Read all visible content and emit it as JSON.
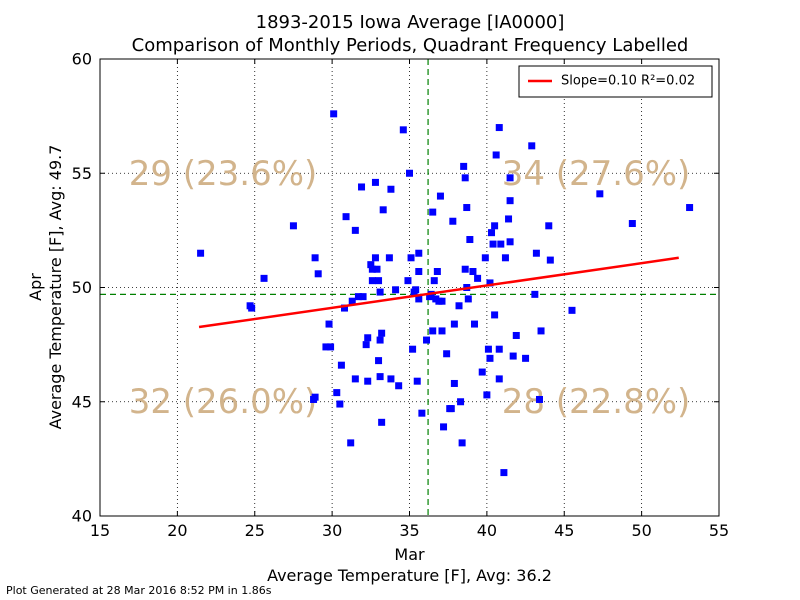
{
  "title": "1893-2015 Iowa Average [IA0000]",
  "subtitle": "Comparison of Monthly Periods, Quadrant Frequency Labelled",
  "footer": "Plot Generated at 28 Mar 2016 8:52 PM in 1.86s",
  "chart_data": {
    "type": "scatter",
    "xlabel": "Mar",
    "xlabel2": "Average Temperature [F], Avg: 36.2",
    "ylabel": "Apr",
    "ylabel2": "Average Temperature [F], Avg: 49.7",
    "xlim": [
      15,
      55
    ],
    "ylim": [
      40,
      60
    ],
    "xticks": [
      15,
      20,
      25,
      30,
      35,
      40,
      45,
      50,
      55
    ],
    "yticks": [
      40,
      45,
      50,
      55,
      60
    ],
    "grid": true,
    "x_avg": 36.2,
    "y_avg": 49.7,
    "legend": {
      "label": "Slope=0.10 R²=0.02",
      "placement": "top-right"
    },
    "regression_line": {
      "x": [
        21.4,
        52.4
      ],
      "y": [
        48.27,
        51.3
      ],
      "color": "#ff0000"
    },
    "point_color": "#0000ff",
    "avg_line_color": "#008000",
    "quadrant_label_color": "#d2b48c",
    "quadrant_labels": {
      "top_left": "29 (23.6%)",
      "top_right": "34 (27.6%)",
      "bottom_left": "32 (26.0%)",
      "bottom_right": "28 (22.8%)"
    },
    "points": [
      [
        21.5,
        51.5
      ],
      [
        24.7,
        49.2
      ],
      [
        24.8,
        49.1
      ],
      [
        25.6,
        50.4
      ],
      [
        27.5,
        52.7
      ],
      [
        28.8,
        45.1
      ],
      [
        28.9,
        45.2
      ],
      [
        28.9,
        51.3
      ],
      [
        29.1,
        50.6
      ],
      [
        29.6,
        47.4
      ],
      [
        29.8,
        48.4
      ],
      [
        29.9,
        47.4
      ],
      [
        30.1,
        57.6
      ],
      [
        30.3,
        45.4
      ],
      [
        30.5,
        44.9
      ],
      [
        30.6,
        46.6
      ],
      [
        30.8,
        49.1
      ],
      [
        30.9,
        53.1
      ],
      [
        31.2,
        43.2
      ],
      [
        31.3,
        49.4
      ],
      [
        31.5,
        52.5
      ],
      [
        31.5,
        46.0
      ],
      [
        31.7,
        49.6
      ],
      [
        31.9,
        54.4
      ],
      [
        32.0,
        49.6
      ],
      [
        32.2,
        47.5
      ],
      [
        32.3,
        47.8
      ],
      [
        32.3,
        45.9
      ],
      [
        32.5,
        51.0
      ],
      [
        32.6,
        50.8
      ],
      [
        32.6,
        50.3
      ],
      [
        32.8,
        54.6
      ],
      [
        32.8,
        51.3
      ],
      [
        32.9,
        50.8
      ],
      [
        33.0,
        50.3
      ],
      [
        33.0,
        46.8
      ],
      [
        33.1,
        47.7
      ],
      [
        33.1,
        46.1
      ],
      [
        33.1,
        49.8
      ],
      [
        33.2,
        44.1
      ],
      [
        33.2,
        48.0
      ],
      [
        33.3,
        53.4
      ],
      [
        33.7,
        51.3
      ],
      [
        33.8,
        46.0
      ],
      [
        33.8,
        54.3
      ],
      [
        34.1,
        49.9
      ],
      [
        34.3,
        45.7
      ],
      [
        34.6,
        56.9
      ],
      [
        34.9,
        50.3
      ],
      [
        35.0,
        55.0
      ],
      [
        35.1,
        51.3
      ],
      [
        35.2,
        47.3
      ],
      [
        35.3,
        49.8
      ],
      [
        35.4,
        49.9
      ],
      [
        35.5,
        45.9
      ],
      [
        35.6,
        51.5
      ],
      [
        35.6,
        50.7
      ],
      [
        35.6,
        49.5
      ],
      [
        35.8,
        44.5
      ],
      [
        36.1,
        47.7
      ],
      [
        36.3,
        49.6
      ],
      [
        36.4,
        49.7
      ],
      [
        36.5,
        53.3
      ],
      [
        36.5,
        48.1
      ],
      [
        36.6,
        50.3
      ],
      [
        36.7,
        49.5
      ],
      [
        36.8,
        50.7
      ],
      [
        36.9,
        49.4
      ],
      [
        37.0,
        54.0
      ],
      [
        37.1,
        48.1
      ],
      [
        37.1,
        49.4
      ],
      [
        37.2,
        43.9
      ],
      [
        37.4,
        47.1
      ],
      [
        37.6,
        44.7
      ],
      [
        37.7,
        44.7
      ],
      [
        37.8,
        52.9
      ],
      [
        37.9,
        45.8
      ],
      [
        37.9,
        48.4
      ],
      [
        38.2,
        49.2
      ],
      [
        38.3,
        45.0
      ],
      [
        38.4,
        43.2
      ],
      [
        38.5,
        55.3
      ],
      [
        38.6,
        54.8
      ],
      [
        38.6,
        50.8
      ],
      [
        38.7,
        50.0
      ],
      [
        38.7,
        53.5
      ],
      [
        38.8,
        49.5
      ],
      [
        38.9,
        52.1
      ],
      [
        39.1,
        50.7
      ],
      [
        39.2,
        48.4
      ],
      [
        39.4,
        50.4
      ],
      [
        39.7,
        46.3
      ],
      [
        39.9,
        51.3
      ],
      [
        40.0,
        45.3
      ],
      [
        40.1,
        47.3
      ],
      [
        40.2,
        46.9
      ],
      [
        40.2,
        50.2
      ],
      [
        40.3,
        52.4
      ],
      [
        40.4,
        51.9
      ],
      [
        40.5,
        48.8
      ],
      [
        40.5,
        52.7
      ],
      [
        40.6,
        55.8
      ],
      [
        40.8,
        47.3
      ],
      [
        40.8,
        57.0
      ],
      [
        40.8,
        46.0
      ],
      [
        40.9,
        51.9
      ],
      [
        41.1,
        41.9
      ],
      [
        41.2,
        51.3
      ],
      [
        41.4,
        53.0
      ],
      [
        41.5,
        52.0
      ],
      [
        41.5,
        54.8
      ],
      [
        41.5,
        53.8
      ],
      [
        41.7,
        47.0
      ],
      [
        41.9,
        47.9
      ],
      [
        42.5,
        46.9
      ],
      [
        42.9,
        56.2
      ],
      [
        43.1,
        49.7
      ],
      [
        43.2,
        51.5
      ],
      [
        43.4,
        45.1
      ],
      [
        43.5,
        48.1
      ],
      [
        44.0,
        52.7
      ],
      [
        44.1,
        51.2
      ],
      [
        45.5,
        49.0
      ],
      [
        47.3,
        54.1
      ],
      [
        49.4,
        52.8
      ],
      [
        53.1,
        53.5
      ]
    ]
  }
}
